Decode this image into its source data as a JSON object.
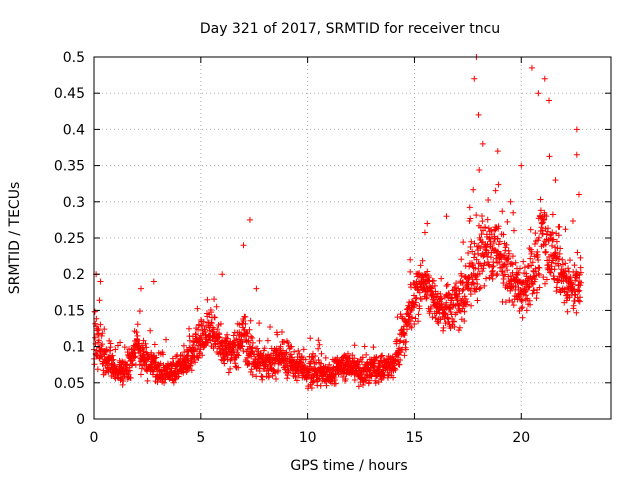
{
  "chart_data": {
    "type": "scatter",
    "title": "Day 321 of 2017, SRMTID for receiver tncu",
    "xlabel": "GPS time / hours",
    "ylabel": "SRMTID / TECUs",
    "xlim": [
      0,
      24.2
    ],
    "ylim": [
      0,
      0.5
    ],
    "x_ticks": [
      0,
      5,
      10,
      15,
      20
    ],
    "x_tick_labels": [
      "0",
      "5",
      "10",
      "15",
      "20"
    ],
    "y_ticks": [
      0,
      0.05,
      0.1,
      0.15,
      0.2,
      0.25,
      0.3,
      0.35,
      0.4,
      0.45,
      0.5
    ],
    "y_tick_labels": [
      "0",
      "0.05",
      "0.1",
      "0.15",
      "0.2",
      "0.25",
      "0.3",
      "0.35",
      "0.4",
      "0.45",
      "0.5"
    ],
    "grid": true,
    "marker": "+",
    "marker_color": "#ff0000",
    "x_step_hours": 0.01,
    "series": [
      {
        "name": "tncu",
        "profile_hours": [
          0,
          0.5,
          1,
          1.5,
          2,
          2.5,
          3,
          3.5,
          4,
          4.5,
          5,
          5.5,
          6,
          6.5,
          7,
          7.5,
          8,
          8.5,
          9,
          9.5,
          10,
          10.5,
          11,
          11.5,
          12,
          12.5,
          13,
          13.5,
          14,
          14.5,
          15,
          15.5,
          16,
          16.5,
          17,
          17.5,
          18,
          18.5,
          19,
          19.5,
          20,
          20.5,
          21,
          21.5,
          22,
          22.5,
          22.8
        ],
        "median": [
          0.12,
          0.09,
          0.07,
          0.065,
          0.1,
          0.08,
          0.07,
          0.065,
          0.07,
          0.085,
          0.11,
          0.12,
          0.1,
          0.09,
          0.12,
          0.08,
          0.075,
          0.08,
          0.085,
          0.075,
          0.065,
          0.07,
          0.06,
          0.07,
          0.075,
          0.065,
          0.07,
          0.07,
          0.07,
          0.12,
          0.17,
          0.19,
          0.16,
          0.15,
          0.16,
          0.18,
          0.22,
          0.24,
          0.22,
          0.2,
          0.17,
          0.2,
          0.25,
          0.22,
          0.2,
          0.18,
          0.19
        ],
        "spread": [
          0.05,
          0.04,
          0.03,
          0.03,
          0.04,
          0.03,
          0.03,
          0.025,
          0.03,
          0.035,
          0.04,
          0.04,
          0.035,
          0.035,
          0.05,
          0.035,
          0.03,
          0.03,
          0.035,
          0.03,
          0.03,
          0.03,
          0.025,
          0.03,
          0.03,
          0.03,
          0.03,
          0.025,
          0.025,
          0.04,
          0.05,
          0.05,
          0.04,
          0.04,
          0.045,
          0.06,
          0.08,
          0.07,
          0.06,
          0.06,
          0.05,
          0.07,
          0.09,
          0.07,
          0.06,
          0.05,
          0.05
        ],
        "peaks": [
          {
            "x": 0.1,
            "y": 0.2
          },
          {
            "x": 0.3,
            "y": 0.19
          },
          {
            "x": 2.2,
            "y": 0.18
          },
          {
            "x": 2.8,
            "y": 0.19
          },
          {
            "x": 6.0,
            "y": 0.2
          },
          {
            "x": 7.0,
            "y": 0.24
          },
          {
            "x": 7.3,
            "y": 0.275
          },
          {
            "x": 7.6,
            "y": 0.18
          },
          {
            "x": 14.8,
            "y": 0.22
          },
          {
            "x": 15.6,
            "y": 0.27
          },
          {
            "x": 16.5,
            "y": 0.28
          },
          {
            "x": 17.8,
            "y": 0.47
          },
          {
            "x": 17.9,
            "y": 0.5
          },
          {
            "x": 18.0,
            "y": 0.42
          },
          {
            "x": 18.2,
            "y": 0.38
          },
          {
            "x": 18.9,
            "y": 0.37
          },
          {
            "x": 19.5,
            "y": 0.3
          },
          {
            "x": 20.0,
            "y": 0.35
          },
          {
            "x": 20.5,
            "y": 0.485
          },
          {
            "x": 20.8,
            "y": 0.45
          },
          {
            "x": 21.1,
            "y": 0.47
          },
          {
            "x": 21.3,
            "y": 0.44
          },
          {
            "x": 21.6,
            "y": 0.33
          },
          {
            "x": 22.6,
            "y": 0.4
          },
          {
            "x": 22.6,
            "y": 0.365
          },
          {
            "x": 22.7,
            "y": 0.31
          }
        ]
      }
    ]
  }
}
